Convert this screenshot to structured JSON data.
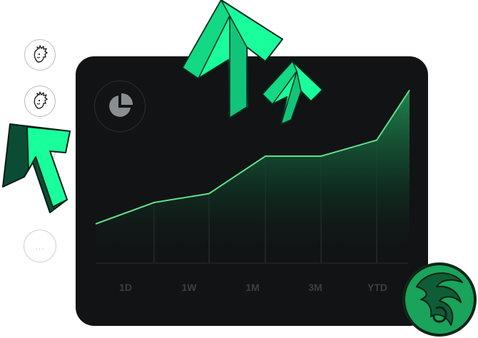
{
  "range_tabs": [
    "1D",
    "1W",
    "1M",
    "3M",
    "YTD"
  ],
  "chart_data": {
    "type": "area",
    "x": [
      0,
      1,
      2,
      3,
      4,
      5,
      6
    ],
    "values": [
      22,
      34,
      39,
      60,
      60,
      69,
      97
    ],
    "ylim": [
      0,
      100
    ],
    "grid": false,
    "line_color": "#5fe089",
    "fill_top_color": "#1f8a52"
  },
  "icons": {
    "avatars": [
      "hedgehog-avatar-icon",
      "hedgehog-avatar-icon"
    ],
    "more": "more-dots-icon",
    "badge": "pie-chart-icon",
    "arrows": [
      "arrow-up-icon",
      "arrow-up-icon",
      "arrow-up-icon"
    ],
    "logo": "wave-logo-icon"
  },
  "colors": {
    "card": "#111315",
    "accent_green": "#19ff9c",
    "accent_green_dark": "#0a4d34",
    "logo_green": "#1aa35a"
  },
  "more_label": "..."
}
